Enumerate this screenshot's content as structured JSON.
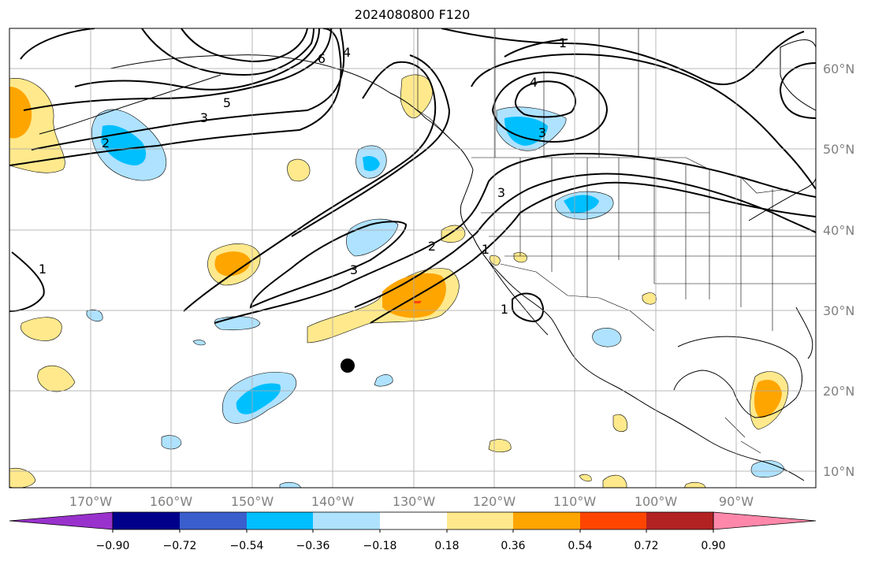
{
  "title": "2024080800 F120",
  "lat_labels": [
    {
      "text": "60°N",
      "lat": 60
    },
    {
      "text": "50°N",
      "lat": 50
    },
    {
      "text": "40°N",
      "lat": 40
    },
    {
      "text": "30°N",
      "lat": 30
    },
    {
      "text": "20°N",
      "lat": 20
    },
    {
      "text": "10°N",
      "lat": 10
    }
  ],
  "lon_labels": [
    {
      "text": "170°W",
      "lon": -170
    },
    {
      "text": "160°W",
      "lon": -160
    },
    {
      "text": "150°W",
      "lon": -150
    },
    {
      "text": "140°W",
      "lon": -140
    },
    {
      "text": "130°W",
      "lon": -130
    },
    {
      "text": "120°W",
      "lon": -120
    },
    {
      "text": "110°W",
      "lon": -110
    },
    {
      "text": "100°W",
      "lon": -100
    },
    {
      "text": "90°W",
      "lon": -90
    }
  ],
  "colorbar": {
    "ticks": [
      "−0.90",
      "−0.72",
      "−0.54",
      "−0.36",
      "−0.18",
      "0.18",
      "0.36",
      "0.54",
      "0.72",
      "0.90"
    ],
    "colors": [
      "#9932cc",
      "#00008b",
      "#3a5fcd",
      "#00bfff",
      "#aee2ff",
      "#ffffff",
      "#ffe98c",
      "#ffa500",
      "#ff4500",
      "#b22222",
      "#ff88aa"
    ]
  },
  "contour_labels": [
    {
      "text": "1"
    },
    {
      "text": "5"
    },
    {
      "text": "3"
    },
    {
      "text": "2"
    },
    {
      "text": "6"
    },
    {
      "text": "4"
    },
    {
      "text": "3"
    },
    {
      "text": "4"
    },
    {
      "text": "3"
    },
    {
      "text": "2"
    },
    {
      "text": "1"
    },
    {
      "text": "1"
    },
    {
      "text": "1"
    },
    {
      "text": "3"
    }
  ]
}
